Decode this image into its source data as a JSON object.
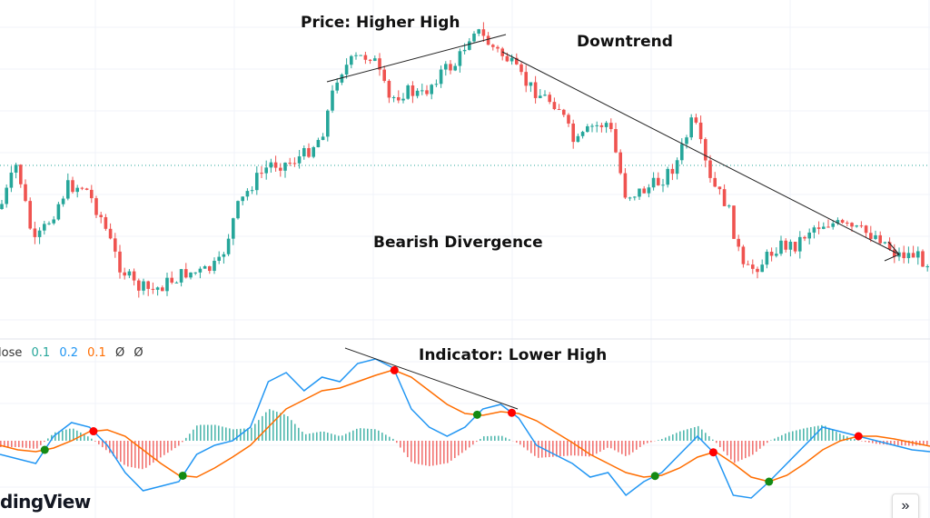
{
  "chart_data": [
    {
      "type": "candlestick",
      "title": "",
      "close": [
        140,
        190,
        100,
        130,
        165,
        165,
        130,
        80,
        55,
        50,
        60,
        70,
        70,
        80,
        140,
        170,
        190,
        190,
        200,
        220,
        290,
        305,
        310,
        260,
        270,
        265,
        290,
        300,
        340,
        320,
        305,
        280,
        265,
        255,
        210,
        230,
        235,
        155,
        160,
        170,
        190,
        240,
        170,
        145,
        70,
        80,
        100,
        100,
        120,
        125,
        120,
        115,
        110,
        90,
        90,
        80
      ],
      "annotations": [
        "Price: Higher High",
        "Downtrend",
        "Bearish Divergence"
      ]
    },
    {
      "type": "line",
      "legend": {
        "prefix": "lose",
        "values": [
          "0.1",
          "0.2",
          "0.1",
          "Ø",
          "Ø"
        ]
      },
      "series": [
        {
          "values": [
            -15,
            -20,
            -25,
            5,
            20,
            15,
            -5,
            -35,
            -55,
            -50,
            -45,
            -15,
            -5,
            0,
            15,
            65,
            75,
            55,
            70,
            65,
            85,
            90,
            80,
            35,
            15,
            5,
            15,
            35,
            40,
            25,
            -5,
            -15,
            -25,
            -40,
            -35,
            -60,
            -45,
            -35,
            -15,
            5,
            -15,
            -60,
            -63,
            -45,
            -25,
            -5,
            15,
            10,
            5,
            0,
            -5,
            -10,
            -12
          ]
        },
        {
          "values": [
            -5,
            -10,
            -12,
            -8,
            0,
            10,
            12,
            5,
            -10,
            -25,
            -38,
            -40,
            -30,
            -18,
            -5,
            15,
            35,
            45,
            55,
            58,
            65,
            72,
            78,
            70,
            55,
            40,
            30,
            28,
            32,
            30,
            22,
            10,
            -2,
            -15,
            -25,
            -35,
            -40,
            -38,
            -30,
            -18,
            -12,
            -25,
            -40,
            -45,
            -38,
            -25,
            -10,
            0,
            5,
            5,
            2,
            -2,
            -6
          ]
        }
      ],
      "annotations": [
        "Indicator: Lower High"
      ],
      "colors": {
        "fast": "#2196f3",
        "slow": "#ff6d00",
        "hist_up": "#26a69a",
        "hist_down": "#ef5350",
        "cross_up": "#138a13",
        "cross_down": "#ff0000"
      }
    }
  ],
  "annotations": {
    "higher_high": "Price: Higher High",
    "downtrend": "Downtrend",
    "bearish_divergence": "Bearish Divergence",
    "lower_high": "Indicator: Lower High"
  },
  "legend": {
    "prefix": "lose",
    "v1": "0.1",
    "v2": "0.2",
    "v3": "0.1",
    "v4": "Ø",
    "v5": "Ø"
  },
  "logo": "dingView",
  "scroll_button": "»"
}
